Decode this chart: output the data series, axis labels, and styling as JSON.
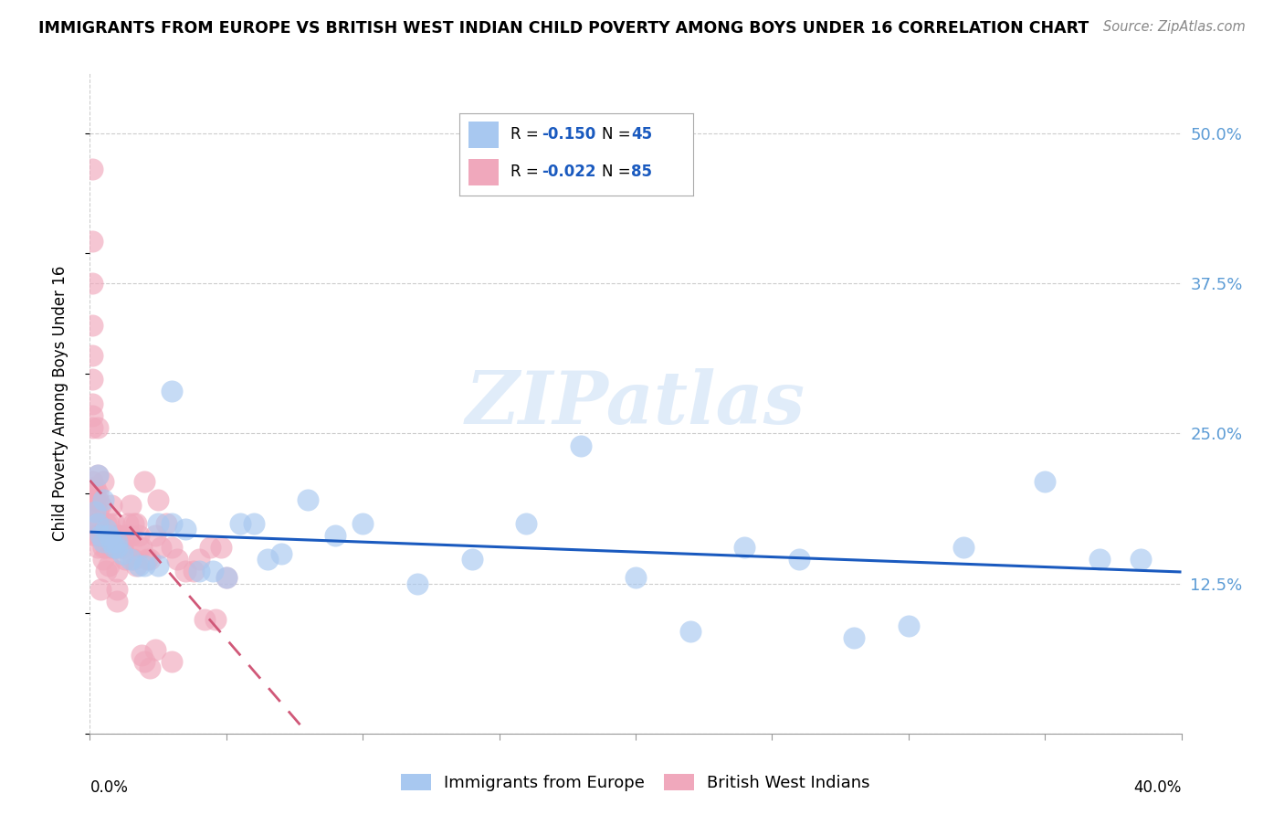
{
  "title": "IMMIGRANTS FROM EUROPE VS BRITISH WEST INDIAN CHILD POVERTY AMONG BOYS UNDER 16 CORRELATION CHART",
  "source": "Source: ZipAtlas.com",
  "ylabel": "Child Poverty Among Boys Under 16",
  "ytick_values": [
    0.0,
    0.125,
    0.25,
    0.375,
    0.5
  ],
  "xtick_values": [
    0.0,
    0.05,
    0.1,
    0.15,
    0.2,
    0.25,
    0.3,
    0.35,
    0.4
  ],
  "xlim": [
    0.0,
    0.4
  ],
  "ylim": [
    0.0,
    0.55
  ],
  "watermark": "ZIPatlas",
  "blue_color": "#a8c8f0",
  "pink_color": "#f0a8bc",
  "blue_line_color": "#1a5abf",
  "pink_line_color": "#d05878",
  "right_tick_color": "#5b9bd5",
  "blue_scatter_x": [
    0.002,
    0.003,
    0.003,
    0.004,
    0.005,
    0.005,
    0.006,
    0.007,
    0.008,
    0.009,
    0.01,
    0.01,
    0.012,
    0.015,
    0.018,
    0.02,
    0.025,
    0.025,
    0.03,
    0.03,
    0.035,
    0.04,
    0.045,
    0.05,
    0.055,
    0.06,
    0.065,
    0.07,
    0.08,
    0.09,
    0.1,
    0.12,
    0.14,
    0.16,
    0.18,
    0.2,
    0.22,
    0.24,
    0.26,
    0.28,
    0.3,
    0.32,
    0.35,
    0.37,
    0.385
  ],
  "blue_scatter_y": [
    0.185,
    0.175,
    0.215,
    0.165,
    0.16,
    0.195,
    0.17,
    0.165,
    0.16,
    0.155,
    0.155,
    0.16,
    0.15,
    0.145,
    0.14,
    0.14,
    0.175,
    0.14,
    0.285,
    0.175,
    0.17,
    0.135,
    0.135,
    0.13,
    0.175,
    0.175,
    0.145,
    0.15,
    0.195,
    0.165,
    0.175,
    0.125,
    0.145,
    0.175,
    0.24,
    0.13,
    0.085,
    0.155,
    0.145,
    0.08,
    0.09,
    0.155,
    0.21,
    0.145,
    0.145
  ],
  "pink_scatter_x": [
    0.001,
    0.001,
    0.001,
    0.001,
    0.001,
    0.001,
    0.001,
    0.001,
    0.001,
    0.001,
    0.002,
    0.002,
    0.002,
    0.002,
    0.002,
    0.002,
    0.002,
    0.003,
    0.003,
    0.003,
    0.003,
    0.003,
    0.003,
    0.003,
    0.003,
    0.004,
    0.004,
    0.004,
    0.004,
    0.005,
    0.005,
    0.005,
    0.005,
    0.006,
    0.006,
    0.006,
    0.006,
    0.007,
    0.007,
    0.008,
    0.008,
    0.009,
    0.009,
    0.01,
    0.01,
    0.01,
    0.011,
    0.012,
    0.013,
    0.014,
    0.015,
    0.016,
    0.017,
    0.018,
    0.019,
    0.02,
    0.021,
    0.022,
    0.024,
    0.025,
    0.026,
    0.028,
    0.03,
    0.032,
    0.035,
    0.038,
    0.04,
    0.042,
    0.044,
    0.046,
    0.048,
    0.05,
    0.01,
    0.01,
    0.012,
    0.013,
    0.015,
    0.016,
    0.017,
    0.018,
    0.019,
    0.02,
    0.022,
    0.024,
    0.03
  ],
  "pink_scatter_y": [
    0.47,
    0.41,
    0.375,
    0.34,
    0.315,
    0.295,
    0.275,
    0.265,
    0.255,
    0.21,
    0.205,
    0.2,
    0.195,
    0.19,
    0.185,
    0.175,
    0.165,
    0.255,
    0.215,
    0.2,
    0.195,
    0.185,
    0.175,
    0.165,
    0.155,
    0.19,
    0.175,
    0.165,
    0.12,
    0.21,
    0.165,
    0.155,
    0.145,
    0.175,
    0.165,
    0.155,
    0.135,
    0.175,
    0.14,
    0.19,
    0.155,
    0.175,
    0.155,
    0.165,
    0.155,
    0.135,
    0.165,
    0.155,
    0.165,
    0.175,
    0.19,
    0.145,
    0.175,
    0.165,
    0.155,
    0.21,
    0.145,
    0.145,
    0.165,
    0.195,
    0.155,
    0.175,
    0.155,
    0.145,
    0.135,
    0.135,
    0.145,
    0.095,
    0.155,
    0.095,
    0.155,
    0.13,
    0.11,
    0.12,
    0.155,
    0.145,
    0.165,
    0.175,
    0.14,
    0.155,
    0.065,
    0.06,
    0.055,
    0.07,
    0.06
  ]
}
